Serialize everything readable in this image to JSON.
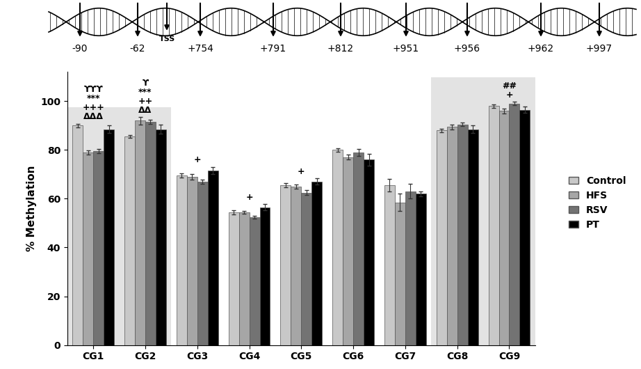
{
  "chart_data": {
    "type": "bar",
    "y_label": "% Methylation",
    "categories": [
      "CG1",
      "CG2",
      "CG3",
      "CG4",
      "CG5",
      "CG6",
      "CG7",
      "CG8",
      "CG9"
    ],
    "series": [
      {
        "name": "Control",
        "color": "#c8c8c8",
        "values": [
          90,
          85.5,
          69.5,
          54.5,
          65.5,
          80,
          65.5,
          88,
          98
        ],
        "errors": [
          0.7,
          0.6,
          0.8,
          0.9,
          0.8,
          0.8,
          2.5,
          0.8,
          0.8
        ]
      },
      {
        "name": "HFS",
        "color": "#a6a6a6",
        "values": [
          79,
          92,
          69,
          54.5,
          65,
          77,
          58.5,
          89.5,
          96
        ],
        "errors": [
          0.8,
          1.5,
          1.2,
          0.6,
          0.8,
          1.0,
          3.5,
          1.0,
          1.0
        ]
      },
      {
        "name": "RSV",
        "color": "#737373",
        "values": [
          79.5,
          91.5,
          67,
          52.5,
          62.5,
          79,
          63,
          90.5,
          99
        ],
        "errors": [
          0.8,
          0.9,
          0.8,
          0.6,
          1.0,
          1.5,
          3.0,
          0.7,
          0.7
        ]
      },
      {
        "name": "PT",
        "color": "#000000",
        "values": [
          88.5,
          88.5,
          71.5,
          56.5,
          67,
          76,
          62,
          88.5,
          96.5
        ],
        "errors": [
          1.5,
          1.8,
          1.5,
          1.2,
          1.3,
          2.5,
          1.0,
          1.5,
          1.2
        ]
      }
    ],
    "annotations": [
      {
        "category": "CG1",
        "lines": [
          "ϒϒϒ",
          "***",
          "+++",
          "ΔΔΔ"
        ]
      },
      {
        "category": "CG2",
        "lines": [
          "ϒ",
          "***",
          "++",
          "ΔΔ"
        ]
      },
      {
        "category": "CG3",
        "lines": [
          "+"
        ]
      },
      {
        "category": "CG4",
        "lines": [
          "+"
        ]
      },
      {
        "category": "CG5",
        "lines": [
          "+"
        ]
      },
      {
        "category": "CG9",
        "lines": [
          "##",
          "+"
        ]
      }
    ],
    "shaded_groups": [
      [
        "CG1",
        "CG2"
      ],
      [
        "CG8",
        "CG9"
      ]
    ],
    "diagram": {
      "sites": [
        "-90",
        "-62",
        "+754",
        "+791",
        "+812",
        "+951",
        "+956",
        "+962",
        "+997"
      ],
      "tss_label": "TSS"
    },
    "ylim": [
      0,
      112
    ],
    "yticks": [
      0,
      20,
      40,
      60,
      80,
      100
    ],
    "legend": "right",
    "grid": false
  }
}
